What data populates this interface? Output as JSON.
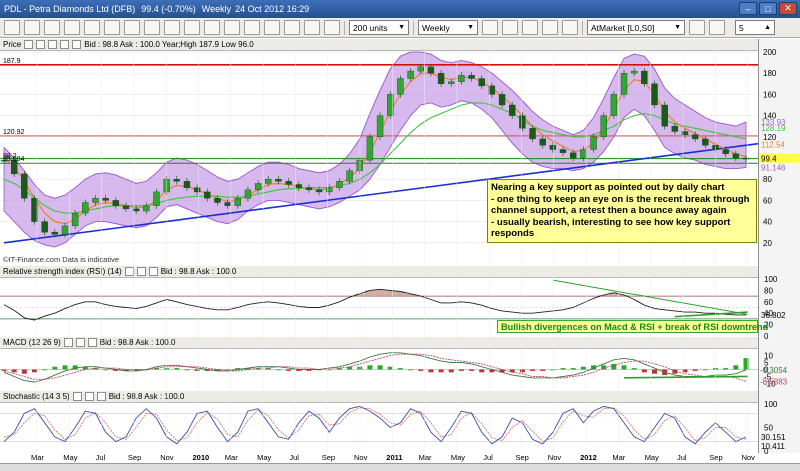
{
  "window": {
    "title": "PDL - Petra Diamonds Ltd (DFB)",
    "last": "99.4 (-0.70%)",
    "period": "Weekly",
    "datetime": "24 Oct 2012 16:29"
  },
  "toolbar": {
    "units": "200 units",
    "interval": "Weekly",
    "order_type": "AtMarket [L0,S0]",
    "quantity": "5"
  },
  "price_panel": {
    "label": "Price",
    "quote": "Bid : 98.8  Ask : 100.0  Year;High 187.9 Low 96.0",
    "source": "©IT-Finance.com  Data is indicative",
    "axis_ticks": [
      "200",
      "180",
      "160",
      "140",
      "120",
      "100",
      "80",
      "60",
      "40",
      "20"
    ],
    "left_labels": [
      "187.9",
      "120.92",
      "95.084",
      "98.2"
    ],
    "right_labels": [
      "133.93",
      "128.19",
      "112.54",
      "99.4",
      "91.146"
    ]
  },
  "annotation": {
    "text": "Nearing a key support as pointed out by daily chart\n - one thing to keep an eye on is the recent break through\n channel support, a retest then a bounce away again\n - usually bearish, interesting to see how key support\n responds"
  },
  "rsi_panel": {
    "label": "Relative strength index (RSI) (14)",
    "quote": "Bid : 98.8  Ask : 100.0",
    "axis_ticks": [
      "100",
      "80",
      "60",
      "40",
      "20",
      "0"
    ],
    "value": "36.802",
    "note": "Bullish divergences on Macd & RSI + break of RSI downtrend"
  },
  "macd_panel": {
    "label": "MACD (12 26 9)",
    "quote": "Bid : 98.8  Ask : 100.0",
    "axis_ticks": [
      "10",
      "5",
      "0",
      "-5",
      "-10"
    ],
    "values": [
      "-0.3054",
      "-8.5383"
    ]
  },
  "stoch_panel": {
    "label": "Stochastic (14 3 5)",
    "quote": "Bid : 98.8  Ask : 100.0",
    "axis_ticks": [
      "100",
      "50",
      "0"
    ],
    "values": [
      "30.151",
      "10.411"
    ]
  },
  "chart_data": {
    "type": "line",
    "x_ticks": [
      "Mar",
      "May",
      "Jul",
      "Sep",
      "Nov",
      "2010",
      "Mar",
      "May",
      "Jul",
      "Sep",
      "Nov",
      "2011",
      "Mar",
      "May",
      "Jul",
      "Sep",
      "Nov",
      "2012",
      "Mar",
      "May",
      "Jul",
      "Sep",
      "Nov"
    ],
    "ylim": [
      0,
      200
    ],
    "price": [
      98,
      85,
      62,
      40,
      30,
      28,
      36,
      48,
      58,
      62,
      60,
      55,
      52,
      50,
      55,
      68,
      80,
      78,
      72,
      68,
      62,
      58,
      55,
      62,
      70,
      76,
      80,
      78,
      75,
      72,
      70,
      68,
      72,
      78,
      88,
      98,
      120,
      140,
      160,
      175,
      182,
      186,
      180,
      170,
      172,
      178,
      175,
      168,
      160,
      150,
      140,
      128,
      118,
      112,
      108,
      105,
      100,
      108,
      120,
      140,
      160,
      180,
      182,
      170,
      150,
      130,
      125,
      122,
      118,
      112,
      108,
      104,
      100,
      99
    ],
    "bb_upper": [
      110,
      100,
      88,
      75,
      65,
      62,
      65,
      72,
      80,
      85,
      86,
      84,
      80,
      76,
      78,
      86,
      96,
      100,
      98,
      94,
      88,
      82,
      78,
      80,
      86,
      92,
      96,
      96,
      94,
      90,
      88,
      86,
      88,
      94,
      104,
      118,
      142,
      164,
      184,
      196,
      200,
      200,
      198,
      192,
      190,
      192,
      190,
      186,
      180,
      172,
      164,
      154,
      144,
      136,
      130,
      126,
      122,
      126,
      138,
      156,
      176,
      194,
      198,
      196,
      184,
      166,
      156,
      150,
      144,
      138,
      134,
      132,
      130,
      134
    ],
    "bb_lower": [
      50,
      40,
      30,
      22,
      18,
      16,
      20,
      28,
      36,
      40,
      40,
      38,
      36,
      34,
      36,
      44,
      54,
      56,
      52,
      48,
      44,
      40,
      38,
      42,
      50,
      56,
      60,
      60,
      58,
      56,
      54,
      52,
      54,
      58,
      64,
      70,
      80,
      94,
      110,
      126,
      140,
      150,
      152,
      148,
      150,
      154,
      152,
      146,
      138,
      126,
      114,
      104,
      96,
      92,
      90,
      90,
      88,
      90,
      96,
      106,
      120,
      138,
      146,
      140,
      126,
      110,
      104,
      100,
      98,
      94,
      92,
      90,
      90,
      91
    ],
    "ema_short": [
      100,
      92,
      78,
      62,
      48,
      40,
      38,
      42,
      50,
      56,
      58,
      57,
      55,
      53,
      54,
      60,
      70,
      74,
      73,
      70,
      66,
      62,
      59,
      60,
      65,
      70,
      75,
      76,
      75,
      73,
      71,
      70,
      71,
      75,
      82,
      90,
      106,
      124,
      144,
      160,
      172,
      180,
      180,
      176,
      174,
      176,
      176,
      172,
      166,
      158,
      150,
      140,
      130,
      122,
      116,
      111,
      106,
      107,
      114,
      128,
      146,
      164,
      174,
      172,
      160,
      144,
      134,
      128,
      123,
      118,
      113,
      108,
      104,
      101
    ],
    "ma_long": [
      80,
      76,
      70,
      62,
      55,
      50,
      48,
      48,
      50,
      52,
      54,
      55,
      55,
      55,
      55,
      57,
      60,
      62,
      63,
      64,
      64,
      64,
      63,
      63,
      64,
      66,
      68,
      70,
      71,
      71,
      72,
      72,
      72,
      74,
      76,
      80,
      86,
      94,
      104,
      114,
      124,
      132,
      138,
      142,
      146,
      150,
      152,
      152,
      150,
      146,
      142,
      136,
      130,
      126,
      124,
      122,
      120,
      120,
      122,
      126,
      130,
      136,
      140,
      142,
      140,
      136,
      132,
      130,
      128,
      126,
      124,
      122,
      120,
      118
    ],
    "support_trendline": [
      [
        0,
        20
      ],
      [
        73,
        112
      ]
    ],
    "horizontal_levels": [
      187.9,
      120.92,
      95.084,
      99.4
    ],
    "rsi": [
      55,
      45,
      32,
      28,
      35,
      40,
      48,
      55,
      60,
      60,
      55,
      52,
      50,
      48,
      52,
      58,
      64,
      60,
      55,
      52,
      48,
      46,
      46,
      50,
      55,
      58,
      60,
      58,
      55,
      52,
      50,
      50,
      54,
      60,
      68,
      74,
      80,
      82,
      80,
      78,
      74,
      70,
      64,
      58,
      58,
      60,
      58,
      54,
      48,
      44,
      42,
      40,
      40,
      42,
      44,
      46,
      50,
      58,
      66,
      72,
      76,
      72,
      64,
      54,
      48,
      46,
      44,
      42,
      42,
      40,
      40,
      38,
      37,
      37
    ],
    "macd": [
      -2,
      -5,
      -8,
      -9,
      -7,
      -4,
      -1,
      1,
      2,
      2,
      1,
      0,
      -1,
      -1,
      0,
      2,
      3,
      3,
      2,
      1,
      0,
      -1,
      -1,
      0,
      1,
      2,
      2,
      2,
      1,
      0,
      0,
      0,
      1,
      2,
      4,
      6,
      9,
      11,
      12,
      12,
      11,
      10,
      8,
      6,
      5,
      5,
      4,
      2,
      0,
      -2,
      -4,
      -5,
      -6,
      -6,
      -6,
      -5,
      -4,
      -2,
      1,
      4,
      7,
      8,
      7,
      4,
      1,
      -2,
      -4,
      -5,
      -5,
      -5,
      -4,
      -4,
      -3,
      -0.3
    ],
    "macd_signal": [
      -1,
      -3,
      -5,
      -7,
      -7,
      -6,
      -4,
      -2,
      0,
      1,
      1,
      1,
      0,
      0,
      0,
      1,
      2,
      2,
      2,
      2,
      1,
      0,
      -1,
      -1,
      0,
      1,
      1,
      2,
      2,
      1,
      1,
      0,
      1,
      1,
      2,
      4,
      6,
      8,
      10,
      11,
      11,
      11,
      10,
      8,
      7,
      6,
      5,
      4,
      2,
      0,
      -2,
      -3,
      -5,
      -5,
      -6,
      -6,
      -5,
      -4,
      -2,
      1,
      3,
      5,
      6,
      6,
      4,
      2,
      -1,
      -3,
      -4,
      -5,
      -5,
      -5,
      -6,
      -8.5
    ],
    "stoch_k": [
      20,
      40,
      80,
      90,
      60,
      30,
      20,
      50,
      85,
      80,
      40,
      20,
      30,
      70,
      90,
      70,
      30,
      15,
      40,
      80,
      85,
      50,
      20,
      40,
      85,
      90,
      60,
      30,
      25,
      60,
      85,
      70,
      40,
      70,
      90,
      95,
      85,
      70,
      50,
      60,
      90,
      80,
      40,
      20,
      50,
      85,
      80,
      40,
      15,
      30,
      70,
      60,
      25,
      15,
      40,
      80,
      90,
      60,
      85,
      95,
      90,
      60,
      30,
      20,
      50,
      80,
      70,
      30,
      15,
      40,
      60,
      40,
      20,
      30
    ],
    "stoch_d": [
      30,
      35,
      60,
      80,
      75,
      45,
      25,
      35,
      70,
      82,
      60,
      30,
      25,
      50,
      80,
      78,
      45,
      22,
      28,
      60,
      82,
      68,
      35,
      30,
      65,
      88,
      75,
      45,
      28,
      45,
      75,
      78,
      55,
      58,
      82,
      92,
      90,
      78,
      60,
      55,
      78,
      85,
      60,
      30,
      35,
      70,
      82,
      58,
      28,
      22,
      50,
      65,
      42,
      20,
      28,
      62,
      85,
      75,
      72,
      90,
      92,
      75,
      45,
      25,
      35,
      65,
      75,
      50,
      22,
      28,
      50,
      50,
      30,
      25
    ]
  }
}
